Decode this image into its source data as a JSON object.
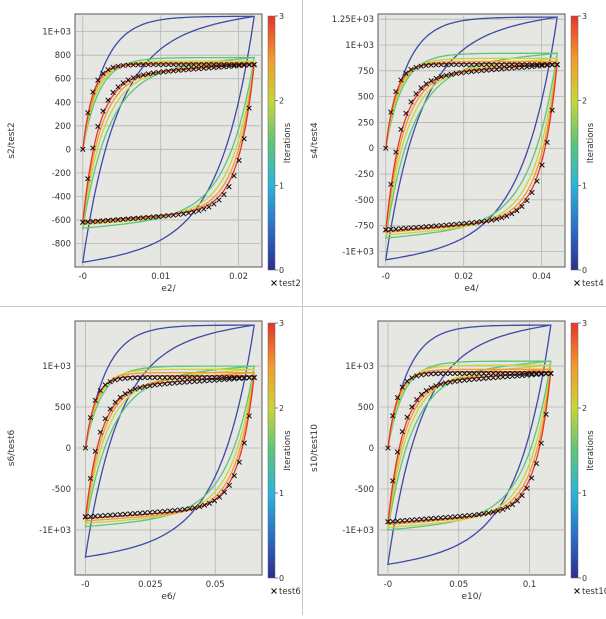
{
  "chart_data": [
    {
      "type": "line",
      "xlabel": "e2/",
      "ylabel": "s2/test2",
      "xlim": [
        -0.001,
        0.023
      ],
      "ylim": [
        -1000,
        1150
      ],
      "xticks": [
        0,
        0.01,
        0.02
      ],
      "xtick_labels": [
        "-0",
        "0.01",
        "0.02"
      ],
      "yticks": [
        -800,
        -600,
        -400,
        -200,
        0,
        200,
        400,
        600,
        800,
        1000
      ],
      "ytick_labels": [
        "-800",
        "-600",
        "-400",
        "-200",
        "0",
        "200",
        "400",
        "600",
        "800",
        "1E+03"
      ],
      "xmax": 0.022,
      "ymax": 720,
      "ymin": -620,
      "colorbar": {
        "label": "Iterations",
        "ticks": [
          "0",
          "1",
          "2",
          "3"
        ],
        "range": [
          0,
          3
        ]
      },
      "legend": {
        "marker": "x",
        "label": "test2"
      },
      "iterations": [
        {
          "iteration": 0,
          "color": "#3f4aa8",
          "ymax": 1130,
          "ymin": -960
        },
        {
          "iteration": 1.8,
          "color": "#5ec57a",
          "ymax": 780,
          "ymin": -670
        },
        {
          "iteration": 2.2,
          "color": "#c9d43a",
          "ymax": 750,
          "ymin": -640
        },
        {
          "iteration": 2.7,
          "color": "#f29a2e",
          "ymax": 735,
          "ymin": -625
        },
        {
          "iteration": 3,
          "color": "#e4352a",
          "ymax": 725,
          "ymin": -615
        }
      ]
    },
    {
      "type": "line",
      "xlabel": "e4/",
      "ylabel": "s4/test4",
      "xlim": [
        -0.002,
        0.046
      ],
      "ylim": [
        -1150,
        1300
      ],
      "xticks": [
        0,
        0.02,
        0.04
      ],
      "xtick_labels": [
        "-0",
        "0.02",
        "0.04"
      ],
      "yticks": [
        -1000,
        -750,
        -500,
        -250,
        0,
        250,
        500,
        750,
        1000,
        1250
      ],
      "ytick_labels": [
        "-1E+03",
        "-750",
        "-500",
        "-250",
        "0",
        "250",
        "500",
        "750",
        "1E+03",
        "1.25E+03"
      ],
      "xmax": 0.044,
      "ymax": 810,
      "ymin": -790,
      "colorbar": {
        "label": "Iterations",
        "ticks": [
          "0",
          "1",
          "2",
          "3"
        ],
        "range": [
          0,
          3
        ]
      },
      "legend": {
        "marker": "x",
        "label": "test4"
      },
      "iterations": [
        {
          "iteration": 0,
          "color": "#3f4aa8",
          "ymax": 1270,
          "ymin": -1080
        },
        {
          "iteration": 1.8,
          "color": "#5ec57a",
          "ymax": 920,
          "ymin": -870
        },
        {
          "iteration": 2.2,
          "color": "#c9d43a",
          "ymax": 870,
          "ymin": -840
        },
        {
          "iteration": 2.7,
          "color": "#f29a2e",
          "ymax": 840,
          "ymin": -815
        },
        {
          "iteration": 3,
          "color": "#e4352a",
          "ymax": 820,
          "ymin": -800
        }
      ]
    },
    {
      "type": "line",
      "xlabel": "e6/",
      "ylabel": "s6/test6",
      "xlim": [
        -0.004,
        0.068
      ],
      "ylim": [
        -1550,
        1550
      ],
      "xticks": [
        0,
        0.025,
        0.05
      ],
      "xtick_labels": [
        "-0",
        "0.025",
        "0.05"
      ],
      "yticks": [
        -1000,
        -500,
        0,
        500,
        1000
      ],
      "ytick_labels": [
        "-1E+03",
        "-500",
        "0",
        "500",
        "1E+03"
      ],
      "xmax": 0.065,
      "ymax": 860,
      "ymin": -840,
      "colorbar": {
        "label": "Iterations",
        "ticks": [
          "0",
          "1",
          "2",
          "3"
        ],
        "range": [
          0,
          3
        ]
      },
      "legend": {
        "marker": "x",
        "label": "test6"
      },
      "iterations": [
        {
          "iteration": 0,
          "color": "#3f4aa8",
          "ymax": 1500,
          "ymin": -1330
        },
        {
          "iteration": 1.8,
          "color": "#5ec57a",
          "ymax": 1000,
          "ymin": -960
        },
        {
          "iteration": 2.2,
          "color": "#c9d43a",
          "ymax": 960,
          "ymin": -920
        },
        {
          "iteration": 2.7,
          "color": "#f29a2e",
          "ymax": 920,
          "ymin": -890
        },
        {
          "iteration": 3,
          "color": "#e4352a",
          "ymax": 880,
          "ymin": -860
        }
      ]
    },
    {
      "type": "line",
      "xlabel": "e10/",
      "ylabel": "s10/test10",
      "xlim": [
        -0.007,
        0.125
      ],
      "ylim": [
        -1550,
        1550
      ],
      "xticks": [
        0,
        0.05,
        0.1
      ],
      "xtick_labels": [
        "-0",
        "0.05",
        "0.1"
      ],
      "yticks": [
        -1000,
        -500,
        0,
        500,
        1000
      ],
      "ytick_labels": [
        "-1E+03",
        "-500",
        "0",
        "500",
        "1E+03"
      ],
      "xmax": 0.115,
      "ymax": 910,
      "ymin": -900,
      "colorbar": {
        "label": "Iterations",
        "ticks": [
          "0",
          "1",
          "2",
          "3"
        ],
        "range": [
          0,
          3
        ]
      },
      "legend": {
        "marker": "x",
        "label": "test10"
      },
      "iterations": [
        {
          "iteration": 0,
          "color": "#3f4aa8",
          "ymax": 1500,
          "ymin": -1420
        },
        {
          "iteration": 1.8,
          "color": "#5ec57a",
          "ymax": 1060,
          "ymin": -1000
        },
        {
          "iteration": 2.2,
          "color": "#c9d43a",
          "ymax": 1010,
          "ymin": -970
        },
        {
          "iteration": 2.7,
          "color": "#f29a2e",
          "ymax": 960,
          "ymin": -935
        },
        {
          "iteration": 3,
          "color": "#e4352a",
          "ymax": 930,
          "ymin": -915
        }
      ]
    }
  ]
}
